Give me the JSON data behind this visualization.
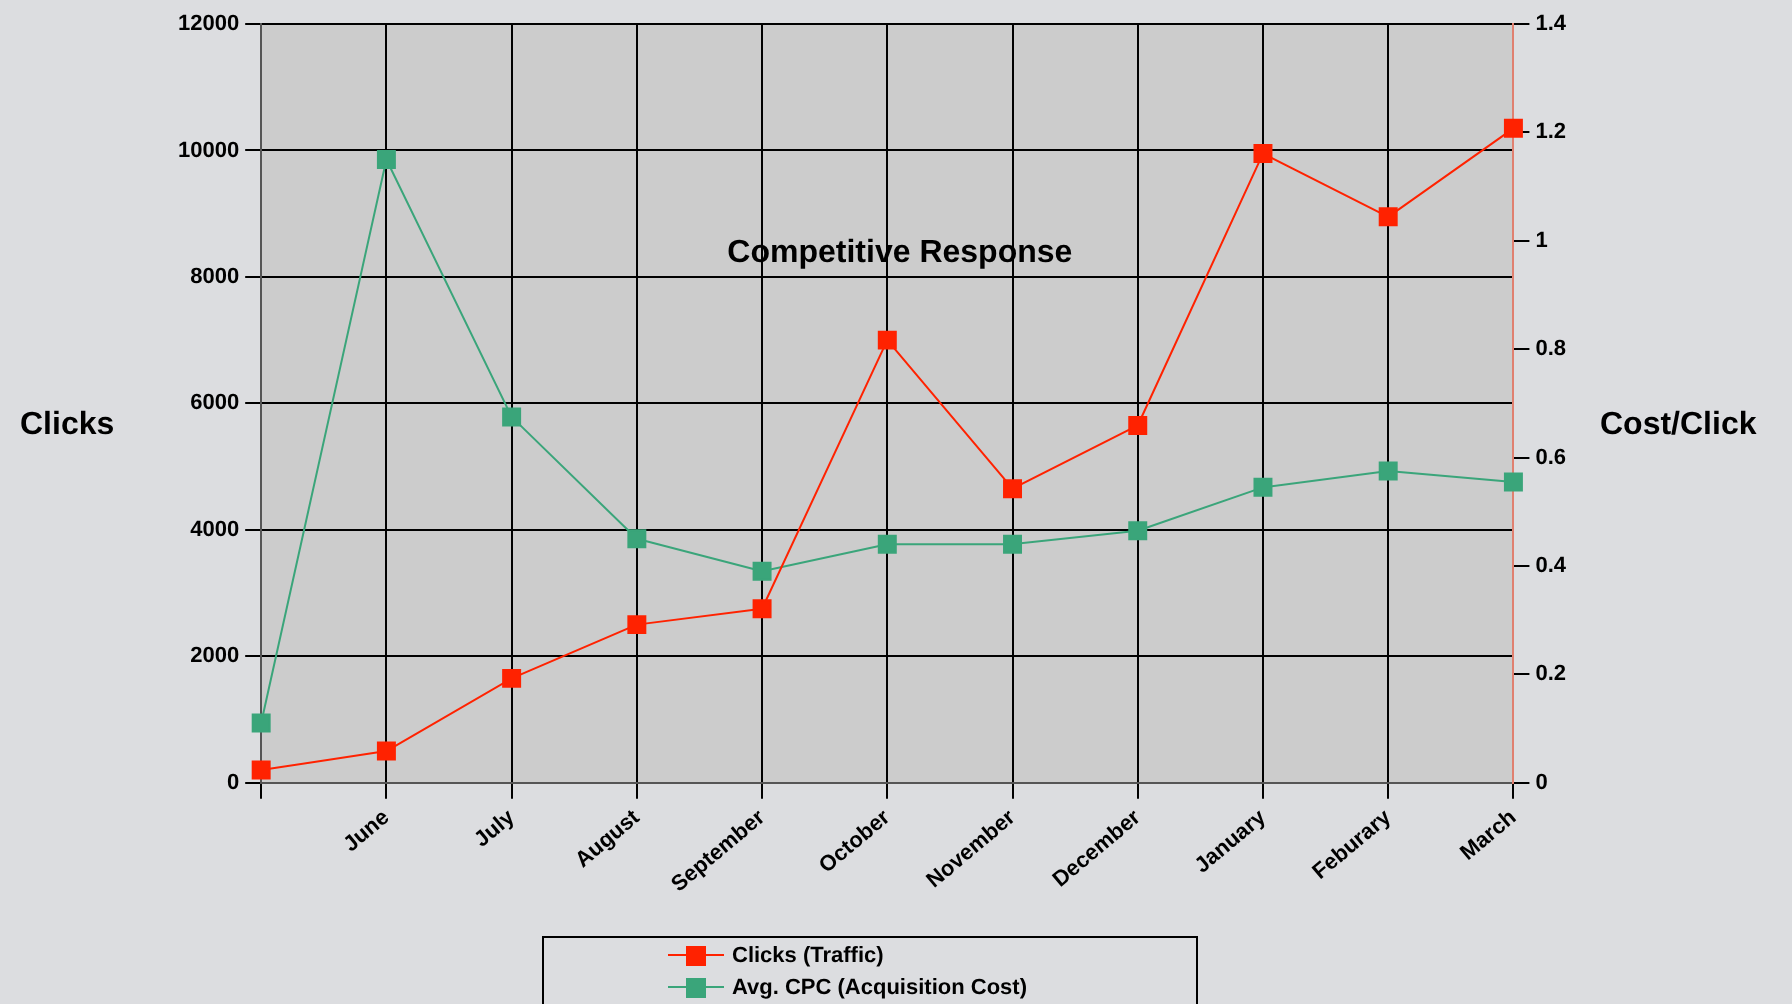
{
  "chart_data": {
    "type": "line",
    "ylabel": "Clicks",
    "y2label": "Cost/Click",
    "categories": [
      null,
      "June",
      "July",
      "August",
      "September",
      "October",
      "November",
      "December",
      "January",
      "Feburary",
      "March"
    ],
    "series": [
      {
        "name": "Clicks (Traffic)",
        "color": "#ff2200",
        "values": [
          200,
          500,
          1650,
          2500,
          2750,
          7000,
          4650,
          5650,
          9950,
          8950,
          10350
        ]
      },
      {
        "name": "Avg. CPC (Acquisition Cost)",
        "color": "#3aa57a",
        "axis": "y2",
        "values": [
          0.11,
          1.15,
          0.675,
          0.45,
          0.39,
          0.44,
          0.44,
          0.465,
          0.545,
          0.575,
          0.555
        ]
      }
    ],
    "ylim": [
      0,
      12000
    ],
    "yticks": [
      0,
      2000,
      4000,
      6000,
      8000,
      10000,
      12000
    ],
    "y2lim": [
      0,
      1.4
    ],
    "y2ticks": [
      0,
      0.2,
      0.4,
      0.6,
      0.8,
      1,
      1.2,
      1.4
    ],
    "grid": true,
    "legend": "bottom",
    "marker": "square",
    "line_style": "solid",
    "annotations": [
      "Competitive Response"
    ]
  }
}
